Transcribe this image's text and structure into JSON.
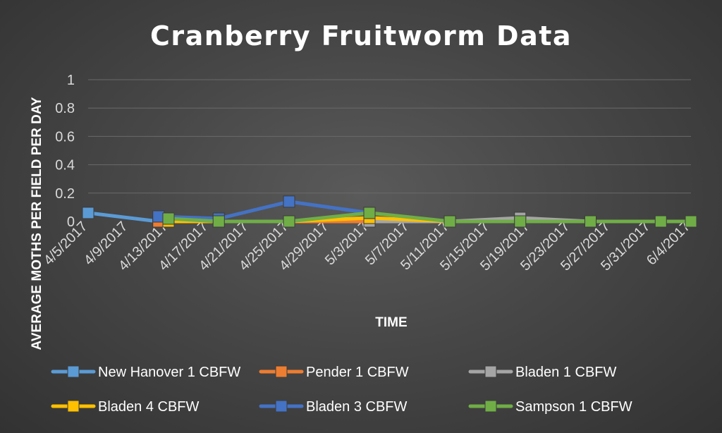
{
  "chart_data": {
    "type": "line",
    "title": "Cranberry Fruitworm Data",
    "xlabel": "TIME",
    "ylabel": "AVERAGE MOTHS PER FIELD PER DAY",
    "ylim": [
      0,
      1
    ],
    "yticks": [
      "0",
      "0.2",
      "0.4",
      "0.6",
      "0.8",
      "1"
    ],
    "xticks": [
      "4/5/2017",
      "4/9/2017",
      "4/13/2017",
      "4/17/2017",
      "4/21/2017",
      "4/25/2017",
      "4/29/2017",
      "5/3/2017",
      "5/7/2017",
      "5/11/2017",
      "5/15/2017",
      "5/19/2017",
      "5/23/2017",
      "5/27/2017",
      "5/31/2017",
      "6/4/2017"
    ],
    "grid": true,
    "legend_position": "bottom",
    "series": [
      {
        "name": "New Hanover 1 CBFW",
        "color": "#5b9bd5",
        "x": [
          "4/5/2017",
          "4/12/2017"
        ],
        "values": [
          0.06,
          0.0
        ]
      },
      {
        "name": "Pender 1 CBFW",
        "color": "#ed7d31",
        "x": [
          "4/12/2017",
          "4/18/2017",
          "4/25/2017",
          "5/3/2017",
          "5/11/2017",
          "5/18/2017",
          "5/25/2017",
          "6/1/2017",
          "6/4/2017"
        ],
        "values": [
          0,
          0,
          0,
          0,
          0,
          0,
          0,
          0,
          0
        ]
      },
      {
        "name": "Bladen 1 CBFW",
        "color": "#a5a5a5",
        "x": [
          "5/3/2017",
          "5/11/2017",
          "5/18/2017",
          "5/25/2017"
        ],
        "values": [
          0.0,
          0.0,
          0.025,
          0.0
        ]
      },
      {
        "name": "Bladen 4 CBFW",
        "color": "#ffc000",
        "x": [
          "4/13/2017",
          "4/18/2017",
          "4/25/2017",
          "5/3/2017",
          "5/11/2017"
        ],
        "values": [
          0.0,
          0.0,
          0.0,
          0.025,
          0.0
        ]
      },
      {
        "name": "Bladen 3 CBFW",
        "color": "#4472c4",
        "x": [
          "4/12/2017",
          "4/18/2017",
          "4/25/2017",
          "5/3/2017"
        ],
        "values": [
          0.035,
          0.02,
          0.14,
          0.06
        ]
      },
      {
        "name": "Sampson 1 CBFW",
        "color": "#70ad47",
        "x": [
          "4/13/2017",
          "4/18/2017",
          "4/25/2017",
          "5/3/2017",
          "5/11/2017",
          "5/18/2017",
          "5/25/2017",
          "6/1/2017",
          "6/4/2017"
        ],
        "values": [
          0.02,
          0.0,
          0.0,
          0.06,
          0.0,
          0.0,
          0.0,
          0.0,
          0.0
        ]
      }
    ]
  }
}
